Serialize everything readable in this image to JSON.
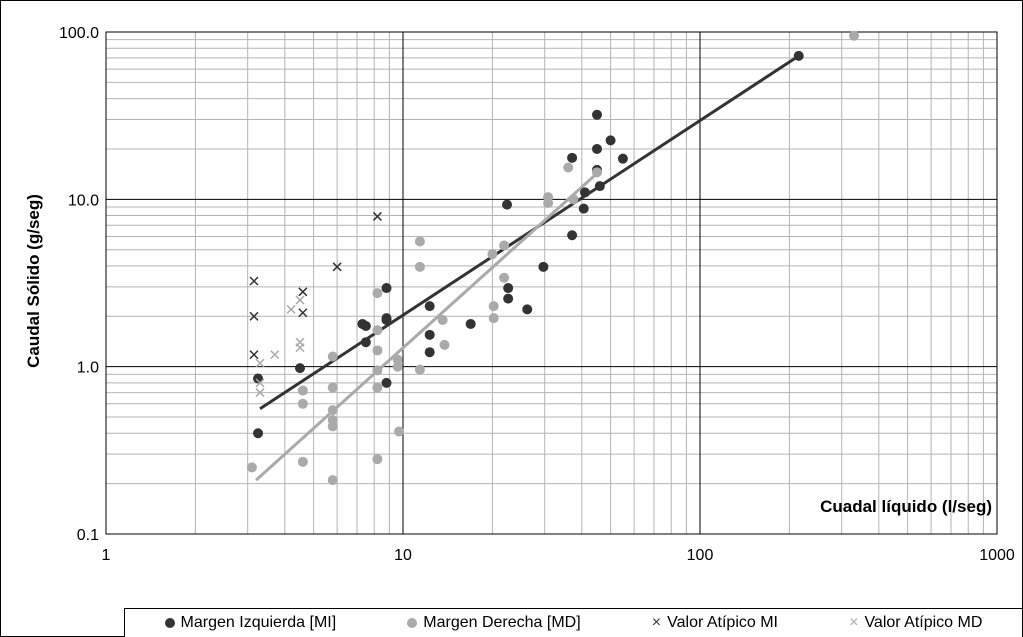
{
  "chart_data": {
    "type": "scatter",
    "title": "",
    "xlabel": "Cuadal líquido (l/seg)",
    "ylabel": "Caudal Sólido (g/seg)",
    "xscale": "log",
    "yscale": "log",
    "xlim": [
      1,
      1000
    ],
    "ylim": [
      0.1,
      100
    ],
    "x_ticks": [
      1,
      10,
      100,
      1000
    ],
    "x_tick_labels": [
      "1",
      "10",
      "100",
      "1000"
    ],
    "y_ticks": [
      0.1,
      1,
      10,
      100
    ],
    "y_tick_labels": [
      "0.1",
      "1.0",
      "10.0",
      "100.0"
    ],
    "grid": true,
    "legend_position": "bottom",
    "series": [
      {
        "name": "Margen Izquierda [MI]",
        "marker": "circle",
        "color": "#333333",
        "points": [
          [
            3.25,
            0.85
          ],
          [
            3.25,
            0.4
          ],
          [
            4.5,
            0.98
          ],
          [
            7.3,
            1.8
          ],
          [
            7.5,
            1.75
          ],
          [
            7.5,
            1.4
          ],
          [
            8.8,
            1.9
          ],
          [
            8.8,
            1.95
          ],
          [
            8.8,
            2.95
          ],
          [
            8.8,
            0.8
          ],
          [
            12.3,
            2.3
          ],
          [
            12.3,
            1.55
          ],
          [
            12.3,
            1.22
          ],
          [
            16.9,
            1.8
          ],
          [
            22.4,
            9.3
          ],
          [
            22.6,
            2.95
          ],
          [
            22.6,
            2.55
          ],
          [
            26.2,
            2.2
          ],
          [
            29.7,
            3.95
          ],
          [
            37.1,
            17.7
          ],
          [
            37.1,
            6.1
          ],
          [
            40.6,
            8.8
          ],
          [
            41.0,
            11.0
          ],
          [
            45.0,
            32.0
          ],
          [
            45.0,
            20.0
          ],
          [
            45.0,
            15.0
          ],
          [
            46.0,
            12.0
          ],
          [
            50.0,
            22.5
          ],
          [
            55.0,
            17.5
          ],
          [
            215,
            72
          ]
        ]
      },
      {
        "name": "Margen Derecha [MD]",
        "marker": "circle",
        "color": "#aaaaaa",
        "points": [
          [
            3.1,
            0.25
          ],
          [
            4.6,
            0.27
          ],
          [
            4.6,
            0.72
          ],
          [
            4.6,
            0.6
          ],
          [
            5.8,
            1.15
          ],
          [
            5.8,
            0.75
          ],
          [
            5.8,
            0.55
          ],
          [
            5.8,
            0.48
          ],
          [
            5.8,
            0.44
          ],
          [
            5.8,
            0.21
          ],
          [
            8.2,
            2.75
          ],
          [
            8.2,
            1.65
          ],
          [
            8.2,
            1.25
          ],
          [
            8.2,
            0.95
          ],
          [
            8.2,
            0.75
          ],
          [
            8.2,
            0.28
          ],
          [
            9.6,
            1.1
          ],
          [
            9.6,
            1.0
          ],
          [
            9.7,
            0.41
          ],
          [
            11.4,
            5.6
          ],
          [
            11.4,
            3.95
          ],
          [
            11.4,
            0.96
          ],
          [
            13.6,
            1.9
          ],
          [
            13.8,
            1.35
          ],
          [
            20.0,
            4.7
          ],
          [
            20.2,
            2.3
          ],
          [
            20.2,
            1.95
          ],
          [
            21.9,
            5.3
          ],
          [
            21.9,
            3.4
          ],
          [
            30.8,
            10.3
          ],
          [
            30.8,
            9.5
          ],
          [
            36.0,
            15.5
          ],
          [
            37.5,
            10.0
          ],
          [
            45.0,
            14.5
          ],
          [
            330,
            95
          ]
        ]
      },
      {
        "name": "Valor Atípico MI",
        "marker": "x",
        "color": "#333333",
        "points": [
          [
            3.15,
            3.25
          ],
          [
            3.15,
            2.0
          ],
          [
            3.15,
            1.18
          ],
          [
            4.6,
            2.8
          ],
          [
            4.6,
            2.1
          ],
          [
            6.0,
            3.95
          ],
          [
            8.2,
            7.9
          ]
        ]
      },
      {
        "name": "Valor Atípico MD",
        "marker": "x",
        "color": "#aaaaaa",
        "points": [
          [
            3.3,
            0.8
          ],
          [
            3.3,
            0.7
          ],
          [
            3.3,
            1.05
          ],
          [
            3.7,
            1.18
          ],
          [
            4.2,
            2.2
          ],
          [
            4.5,
            1.4
          ],
          [
            4.5,
            1.3
          ],
          [
            4.5,
            2.5
          ]
        ]
      }
    ],
    "trendlines": [
      {
        "series": "Margen Izquierda [MI]",
        "color": "#333333",
        "from": [
          3.3,
          0.56
        ],
        "to": [
          215,
          72
        ]
      },
      {
        "series": "Margen Derecha [MD]",
        "color": "#aaaaaa",
        "from": [
          3.2,
          0.21
        ],
        "to": [
          46,
          14.8
        ]
      }
    ]
  }
}
